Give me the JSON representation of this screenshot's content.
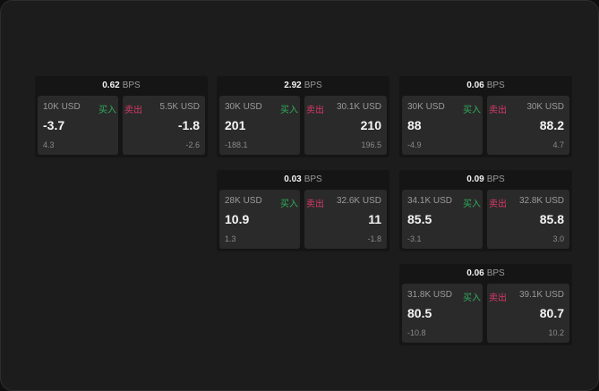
{
  "labels": {
    "buy": "买入",
    "sell": "卖出",
    "unit": "BPS"
  },
  "colors": {
    "buy": "#2fae5c",
    "sell": "#d8396a"
  },
  "widgets": [
    {
      "spread": "0.62",
      "buy": {
        "size": "10K USD",
        "price": "-3.7",
        "change": "4.3"
      },
      "sell": {
        "size": "5.5K USD",
        "price": "-1.8",
        "change": "-2.6"
      }
    },
    {
      "spread": "2.92",
      "buy": {
        "size": "30K USD",
        "price": "201",
        "change": "-188.1"
      },
      "sell": {
        "size": "30.1K USD",
        "price": "210",
        "change": "196.5"
      }
    },
    {
      "spread": "0.06",
      "buy": {
        "size": "30K USD",
        "price": "88",
        "change": "-4.9"
      },
      "sell": {
        "size": "30K USD",
        "price": "88.2",
        "change": "4.7"
      }
    },
    {
      "spread": "0.03",
      "buy": {
        "size": "28K USD",
        "price": "10.9",
        "change": "1.3"
      },
      "sell": {
        "size": "32.6K USD",
        "price": "11",
        "change": "-1.8"
      }
    },
    {
      "spread": "0.09",
      "buy": {
        "size": "34.1K USD",
        "price": "85.5",
        "change": "-3.1"
      },
      "sell": {
        "size": "32.8K USD",
        "price": "85.8",
        "change": "3.0"
      }
    },
    {
      "spread": "0.06",
      "buy": {
        "size": "31.8K USD",
        "price": "80.5",
        "change": "-10.8"
      },
      "sell": {
        "size": "39.1K USD",
        "price": "80.7",
        "change": "10.2"
      }
    }
  ]
}
